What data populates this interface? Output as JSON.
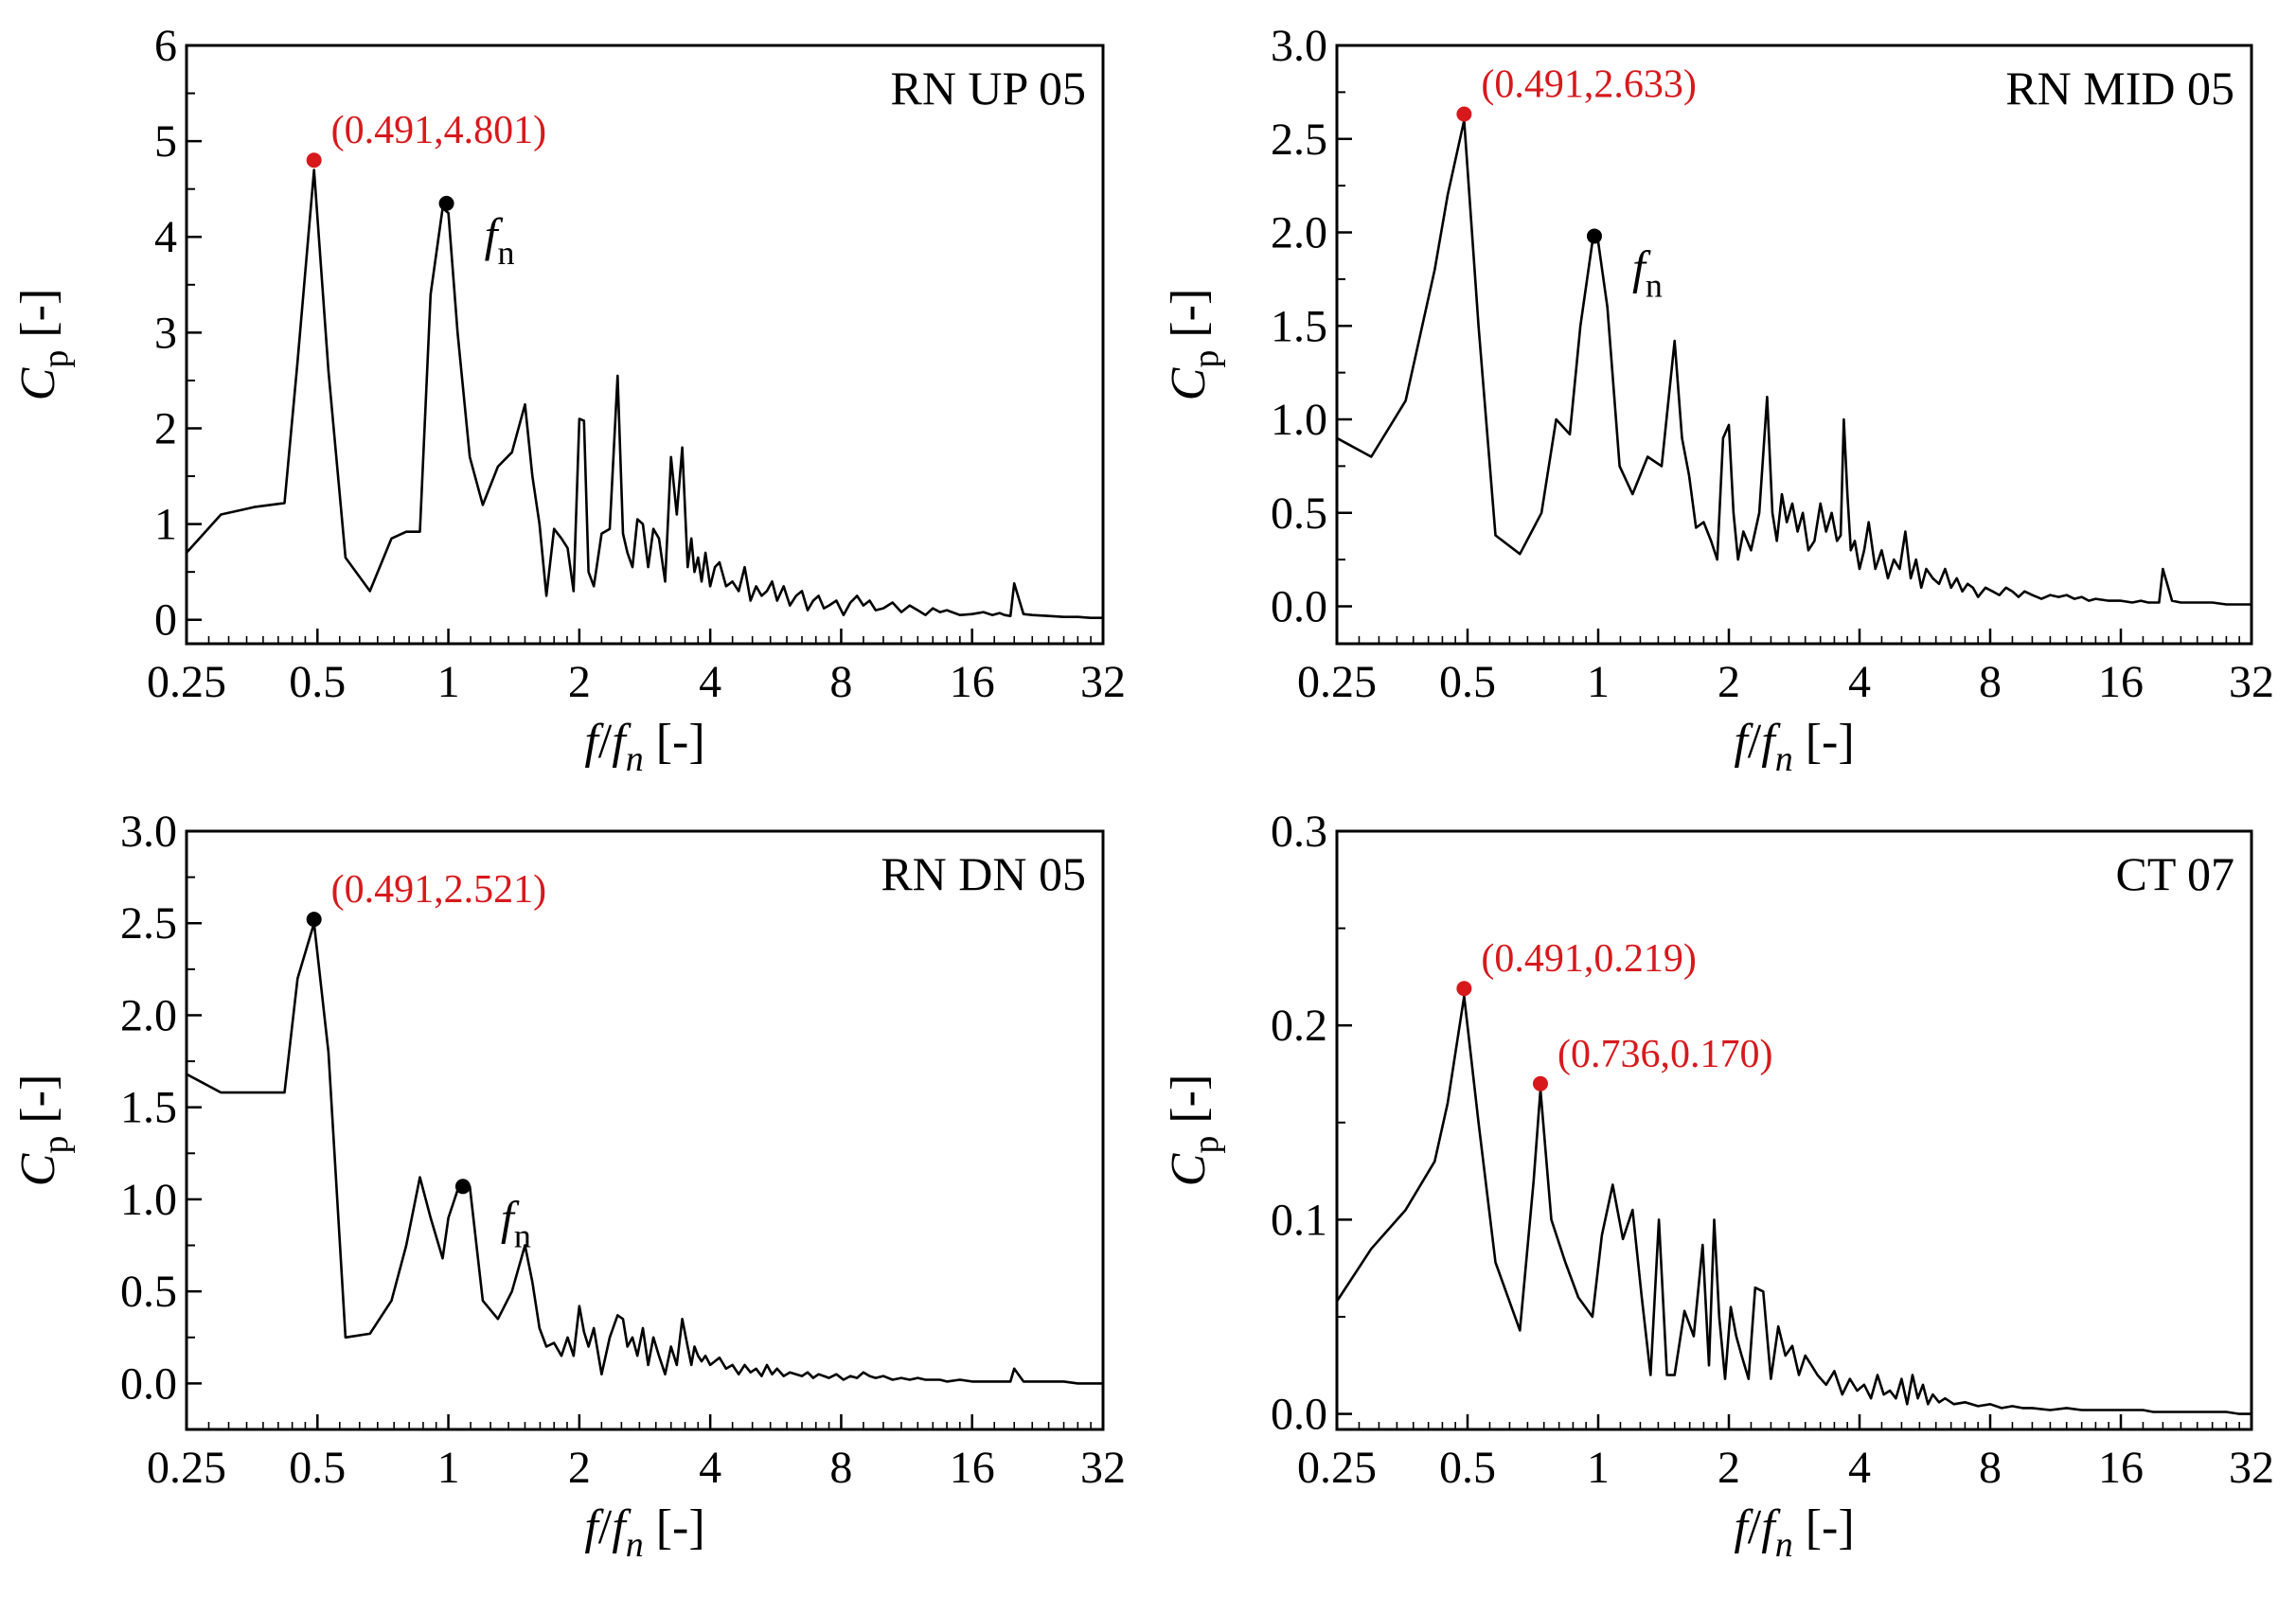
{
  "colors": {
    "annotation": "#d7191c",
    "line": "#000000",
    "frame": "#000000"
  },
  "chart_data": [
    {
      "type": "line",
      "title": "RN UP 05",
      "xlabel": {
        "f1": "f",
        "slash": "/",
        "f2": "f",
        "sub": "n",
        "unit": " [-]"
      },
      "ylabel": {
        "main": "C",
        "sub": "p",
        "unit": " [-]"
      },
      "xscale": "log2",
      "xlim": [
        0.25,
        32
      ],
      "ylim": [
        -0.25,
        6
      ],
      "xticks": [
        0.25,
        0.5,
        1,
        2,
        4,
        8,
        16,
        32
      ],
      "xtick_labels": [
        "0.25",
        "0.5",
        "1",
        "2",
        "4",
        "8",
        "16",
        "32"
      ],
      "yticks": [
        0,
        1,
        2,
        3,
        4,
        5,
        6
      ],
      "ytick_labels": [
        "0",
        "1",
        "2",
        "3",
        "4",
        "5",
        "6"
      ],
      "label_position": "top-right",
      "x": [
        0.25,
        0.3,
        0.36,
        0.42,
        0.45,
        0.491,
        0.53,
        0.58,
        0.66,
        0.74,
        0.8,
        0.86,
        0.91,
        0.97,
        1,
        1.05,
        1.12,
        1.2,
        1.3,
        1.4,
        1.5,
        1.56,
        1.62,
        1.68,
        1.75,
        1.82,
        1.88,
        1.94,
        2,
        2.05,
        2.1,
        2.16,
        2.25,
        2.35,
        2.45,
        2.52,
        2.58,
        2.65,
        2.72,
        2.8,
        2.88,
        2.96,
        3.05,
        3.15,
        3.25,
        3.35,
        3.45,
        3.55,
        3.62,
        3.68,
        3.75,
        3.82,
        3.9,
        4,
        4.1,
        4.2,
        4.35,
        4.5,
        4.65,
        4.8,
        4.95,
        5.1,
        5.25,
        5.4,
        5.55,
        5.7,
        5.9,
        6.1,
        6.3,
        6.5,
        6.7,
        6.9,
        7.1,
        7.3,
        7.5,
        7.8,
        8.1,
        8.4,
        8.7,
        9,
        9.3,
        9.6,
        10,
        10.5,
        11,
        11.5,
        12,
        12.5,
        13,
        13.5,
        14,
        15,
        16,
        17,
        17.8,
        18.5,
        19,
        19.6,
        20,
        21,
        22,
        24,
        26,
        28,
        30,
        32
      ],
      "y": [
        0.7,
        1.1,
        1.18,
        1.22,
        2.7,
        4.7,
        2.6,
        0.65,
        0.3,
        0.85,
        0.92,
        0.92,
        3.4,
        4.3,
        4.25,
        3.0,
        1.7,
        1.2,
        1.6,
        1.75,
        2.25,
        1.5,
        1.0,
        0.25,
        0.95,
        0.85,
        0.75,
        0.3,
        2.1,
        2.08,
        0.5,
        0.35,
        0.9,
        0.95,
        2.55,
        0.9,
        0.7,
        0.55,
        1.05,
        1.0,
        0.55,
        0.95,
        0.85,
        0.4,
        1.7,
        1.1,
        1.8,
        0.55,
        0.85,
        0.5,
        0.65,
        0.4,
        0.7,
        0.35,
        0.55,
        0.6,
        0.35,
        0.4,
        0.3,
        0.55,
        0.2,
        0.35,
        0.25,
        0.3,
        0.4,
        0.2,
        0.35,
        0.15,
        0.25,
        0.3,
        0.1,
        0.2,
        0.25,
        0.12,
        0.15,
        0.2,
        0.05,
        0.18,
        0.25,
        0.15,
        0.2,
        0.1,
        0.12,
        0.18,
        0.08,
        0.15,
        0.1,
        0.05,
        0.12,
        0.08,
        0.1,
        0.05,
        0.06,
        0.08,
        0.05,
        0.07,
        0.05,
        0.04,
        0.38,
        0.06,
        0.05,
        0.04,
        0.03,
        0.03,
        0.02,
        0.02
      ],
      "markers": [
        {
          "x": 0.491,
          "y": 4.801,
          "color": "red",
          "label": "(0.491,4.801)",
          "label_side": "right"
        },
        {
          "x": 0.99,
          "y": 4.35,
          "color": "black",
          "label": "fn"
        }
      ]
    },
    {
      "type": "line",
      "title": "RN MID 05",
      "xlabel": {
        "f1": "f",
        "slash": "/",
        "f2": "f",
        "sub": "n",
        "unit": " [-]"
      },
      "ylabel": {
        "main": "C",
        "sub": "p",
        "unit": " [-]"
      },
      "xscale": "log2",
      "xlim": [
        0.25,
        32
      ],
      "ylim": [
        -0.2,
        3.0
      ],
      "xticks": [
        0.25,
        0.5,
        1,
        2,
        4,
        8,
        16,
        32
      ],
      "xtick_labels": [
        "0.25",
        "0.5",
        "1",
        "2",
        "4",
        "8",
        "16",
        "32"
      ],
      "yticks": [
        0,
        0.5,
        1,
        1.5,
        2,
        2.5,
        3
      ],
      "ytick_labels": [
        "0.0",
        "0.5",
        "1.0",
        "1.5",
        "2.0",
        "2.5",
        "3.0"
      ],
      "label_position": "top-right",
      "x": [
        0.25,
        0.3,
        0.36,
        0.42,
        0.45,
        0.491,
        0.53,
        0.58,
        0.66,
        0.74,
        0.8,
        0.86,
        0.91,
        0.97,
        1,
        1.05,
        1.12,
        1.2,
        1.3,
        1.4,
        1.5,
        1.56,
        1.62,
        1.68,
        1.75,
        1.82,
        1.88,
        1.94,
        2,
        2.05,
        2.1,
        2.16,
        2.25,
        2.35,
        2.45,
        2.52,
        2.58,
        2.65,
        2.72,
        2.8,
        2.88,
        2.96,
        3.05,
        3.15,
        3.25,
        3.35,
        3.45,
        3.55,
        3.62,
        3.68,
        3.75,
        3.82,
        3.9,
        4,
        4.1,
        4.2,
        4.35,
        4.5,
        4.65,
        4.8,
        4.95,
        5.1,
        5.25,
        5.4,
        5.55,
        5.7,
        5.9,
        6.1,
        6.3,
        6.5,
        6.7,
        6.9,
        7.1,
        7.3,
        7.5,
        7.8,
        8.1,
        8.4,
        8.7,
        9,
        9.3,
        9.6,
        10,
        10.5,
        11,
        11.5,
        12,
        12.5,
        13,
        13.5,
        14,
        15,
        16,
        17,
        17.8,
        18.5,
        19,
        19.6,
        20,
        21,
        22,
        24,
        26,
        28,
        30,
        32
      ],
      "y": [
        0.9,
        0.8,
        1.1,
        1.8,
        2.2,
        2.6,
        1.5,
        0.38,
        0.28,
        0.5,
        1.0,
        0.92,
        1.5,
        1.95,
        1.95,
        1.6,
        0.75,
        0.6,
        0.8,
        0.75,
        1.42,
        0.9,
        0.7,
        0.42,
        0.45,
        0.35,
        0.25,
        0.9,
        0.97,
        0.5,
        0.25,
        0.4,
        0.3,
        0.5,
        1.12,
        0.5,
        0.35,
        0.6,
        0.45,
        0.55,
        0.4,
        0.5,
        0.3,
        0.35,
        0.55,
        0.4,
        0.5,
        0.35,
        0.38,
        1.0,
        0.6,
        0.3,
        0.35,
        0.2,
        0.3,
        0.45,
        0.2,
        0.3,
        0.15,
        0.25,
        0.2,
        0.4,
        0.15,
        0.25,
        0.1,
        0.2,
        0.15,
        0.12,
        0.2,
        0.1,
        0.15,
        0.08,
        0.12,
        0.1,
        0.05,
        0.1,
        0.08,
        0.06,
        0.1,
        0.08,
        0.05,
        0.08,
        0.06,
        0.04,
        0.06,
        0.05,
        0.06,
        0.04,
        0.05,
        0.03,
        0.04,
        0.03,
        0.03,
        0.02,
        0.03,
        0.02,
        0.02,
        0.02,
        0.2,
        0.03,
        0.02,
        0.02,
        0.02,
        0.01,
        0.01,
        0.01
      ],
      "markers": [
        {
          "x": 0.491,
          "y": 2.633,
          "color": "red",
          "label": "(0.491,2.633)",
          "label_side": "right"
        },
        {
          "x": 0.98,
          "y": 1.98,
          "color": "black",
          "label": "fn"
        }
      ]
    },
    {
      "type": "line",
      "title": "RN DN 05",
      "xlabel": {
        "f1": "f",
        "slash": "/",
        "f2": "f",
        "sub": "n",
        "unit": " [-]"
      },
      "ylabel": {
        "main": "C",
        "sub": "p",
        "unit": " [-]"
      },
      "xscale": "log2",
      "xlim": [
        0.25,
        32
      ],
      "ylim": [
        -0.25,
        3.0
      ],
      "xticks": [
        0.25,
        0.5,
        1,
        2,
        4,
        8,
        16,
        32
      ],
      "xtick_labels": [
        "0.25",
        "0.5",
        "1",
        "2",
        "4",
        "8",
        "16",
        "32"
      ],
      "yticks": [
        0,
        0.5,
        1,
        1.5,
        2,
        2.5,
        3
      ],
      "ytick_labels": [
        "0.0",
        "0.5",
        "1.0",
        "1.5",
        "2.0",
        "2.5",
        "3.0"
      ],
      "label_position": "top-right",
      "x": [
        0.25,
        0.3,
        0.36,
        0.42,
        0.45,
        0.491,
        0.53,
        0.58,
        0.66,
        0.74,
        0.8,
        0.86,
        0.91,
        0.97,
        1,
        1.05,
        1.12,
        1.2,
        1.3,
        1.4,
        1.5,
        1.56,
        1.62,
        1.68,
        1.75,
        1.82,
        1.88,
        1.94,
        2,
        2.05,
        2.1,
        2.16,
        2.25,
        2.35,
        2.45,
        2.52,
        2.58,
        2.65,
        2.72,
        2.8,
        2.88,
        2.96,
        3.05,
        3.15,
        3.25,
        3.35,
        3.45,
        3.55,
        3.62,
        3.68,
        3.75,
        3.82,
        3.9,
        4,
        4.1,
        4.2,
        4.35,
        4.5,
        4.65,
        4.8,
        4.95,
        5.1,
        5.25,
        5.4,
        5.55,
        5.7,
        5.9,
        6.1,
        6.3,
        6.5,
        6.7,
        6.9,
        7.1,
        7.3,
        7.5,
        7.8,
        8.1,
        8.4,
        8.7,
        9,
        9.3,
        9.6,
        10,
        10.5,
        11,
        11.5,
        12,
        12.5,
        13,
        13.5,
        14,
        15,
        16,
        17,
        17.8,
        18.5,
        19,
        19.6,
        20,
        21,
        22,
        24,
        26,
        28,
        30,
        32
      ],
      "y": [
        1.68,
        1.58,
        1.58,
        1.58,
        2.2,
        2.5,
        1.8,
        0.25,
        0.27,
        0.45,
        0.75,
        1.12,
        0.9,
        0.68,
        0.9,
        1.05,
        1.07,
        0.45,
        0.35,
        0.5,
        0.75,
        0.55,
        0.3,
        0.2,
        0.22,
        0.15,
        0.25,
        0.15,
        0.42,
        0.28,
        0.2,
        0.3,
        0.05,
        0.25,
        0.37,
        0.35,
        0.2,
        0.25,
        0.15,
        0.3,
        0.1,
        0.25,
        0.15,
        0.05,
        0.2,
        0.1,
        0.35,
        0.2,
        0.1,
        0.2,
        0.15,
        0.12,
        0.15,
        0.1,
        0.12,
        0.14,
        0.08,
        0.1,
        0.05,
        0.1,
        0.06,
        0.08,
        0.04,
        0.1,
        0.05,
        0.08,
        0.04,
        0.06,
        0.05,
        0.04,
        0.06,
        0.03,
        0.05,
        0.04,
        0.03,
        0.05,
        0.02,
        0.04,
        0.03,
        0.06,
        0.04,
        0.03,
        0.04,
        0.02,
        0.03,
        0.02,
        0.03,
        0.02,
        0.02,
        0.02,
        0.01,
        0.02,
        0.01,
        0.01,
        0.01,
        0.01,
        0.01,
        0.01,
        0.08,
        0.01,
        0.01,
        0.01,
        0.01,
        0.0,
        0.0,
        0.0
      ],
      "markers": [
        {
          "x": 0.491,
          "y": 2.521,
          "color": "black",
          "label": "(0.491,2.521)",
          "label_side": "right",
          "label_color": "red"
        },
        {
          "x": 1.08,
          "y": 1.07,
          "color": "black",
          "label": "fn"
        }
      ]
    },
    {
      "type": "line",
      "title": "CT 07",
      "xlabel": {
        "f1": "f",
        "slash": "/",
        "f2": "f",
        "sub": "n",
        "unit": " [-]"
      },
      "ylabel": {
        "main": "C",
        "sub": "p",
        "unit": " [-]"
      },
      "xscale": "log2",
      "xlim": [
        0.25,
        32
      ],
      "ylim": [
        -0.008,
        0.3
      ],
      "xticks": [
        0.25,
        0.5,
        1,
        2,
        4,
        8,
        16,
        32
      ],
      "xtick_labels": [
        "0.25",
        "0.5",
        "1",
        "2",
        "4",
        "8",
        "16",
        "32"
      ],
      "yticks": [
        0,
        0.1,
        0.2,
        0.3
      ],
      "ytick_labels": [
        "0.0",
        "0.1",
        "0.2",
        "0.3"
      ],
      "label_position": "top-right",
      "x": [
        0.25,
        0.3,
        0.36,
        0.42,
        0.45,
        0.491,
        0.53,
        0.58,
        0.66,
        0.71,
        0.736,
        0.78,
        0.84,
        0.9,
        0.97,
        1.02,
        1.08,
        1.14,
        1.2,
        1.26,
        1.32,
        1.38,
        1.44,
        1.5,
        1.58,
        1.66,
        1.74,
        1.8,
        1.85,
        1.9,
        1.96,
        2.02,
        2.08,
        2.14,
        2.22,
        2.3,
        2.4,
        2.5,
        2.6,
        2.7,
        2.8,
        2.9,
        3.0,
        3.1,
        3.2,
        3.35,
        3.5,
        3.65,
        3.8,
        3.95,
        4.1,
        4.25,
        4.4,
        4.55,
        4.7,
        4.85,
        5.0,
        5.15,
        5.3,
        5.45,
        5.6,
        5.75,
        5.9,
        6.1,
        6.3,
        6.6,
        7,
        7.5,
        8,
        8.5,
        9,
        9.5,
        10,
        11,
        12,
        13,
        14,
        15,
        16,
        17,
        18,
        19,
        20,
        22,
        24,
        26,
        28,
        30,
        32
      ],
      "y": [
        0.058,
        0.085,
        0.105,
        0.13,
        0.16,
        0.215,
        0.15,
        0.078,
        0.043,
        0.12,
        0.167,
        0.1,
        0.078,
        0.06,
        0.05,
        0.092,
        0.118,
        0.09,
        0.105,
        0.06,
        0.02,
        0.1,
        0.02,
        0.02,
        0.053,
        0.04,
        0.087,
        0.025,
        0.1,
        0.05,
        0.018,
        0.055,
        0.04,
        0.03,
        0.018,
        0.065,
        0.063,
        0.018,
        0.045,
        0.03,
        0.035,
        0.02,
        0.03,
        0.025,
        0.02,
        0.015,
        0.022,
        0.01,
        0.018,
        0.012,
        0.015,
        0.008,
        0.02,
        0.01,
        0.012,
        0.008,
        0.018,
        0.005,
        0.02,
        0.008,
        0.015,
        0.005,
        0.01,
        0.006,
        0.008,
        0.005,
        0.006,
        0.004,
        0.005,
        0.003,
        0.004,
        0.003,
        0.003,
        0.002,
        0.003,
        0.002,
        0.002,
        0.002,
        0.002,
        0.002,
        0.002,
        0.001,
        0.001,
        0.001,
        0.001,
        0.001,
        0.001,
        0.0,
        0.0
      ],
      "markers": [
        {
          "x": 0.491,
          "y": 0.219,
          "color": "red",
          "label": "(0.491,0.219)",
          "label_side": "right"
        },
        {
          "x": 0.736,
          "y": 0.17,
          "color": "red",
          "label": "(0.736,0.170)",
          "label_side": "right"
        }
      ]
    }
  ]
}
